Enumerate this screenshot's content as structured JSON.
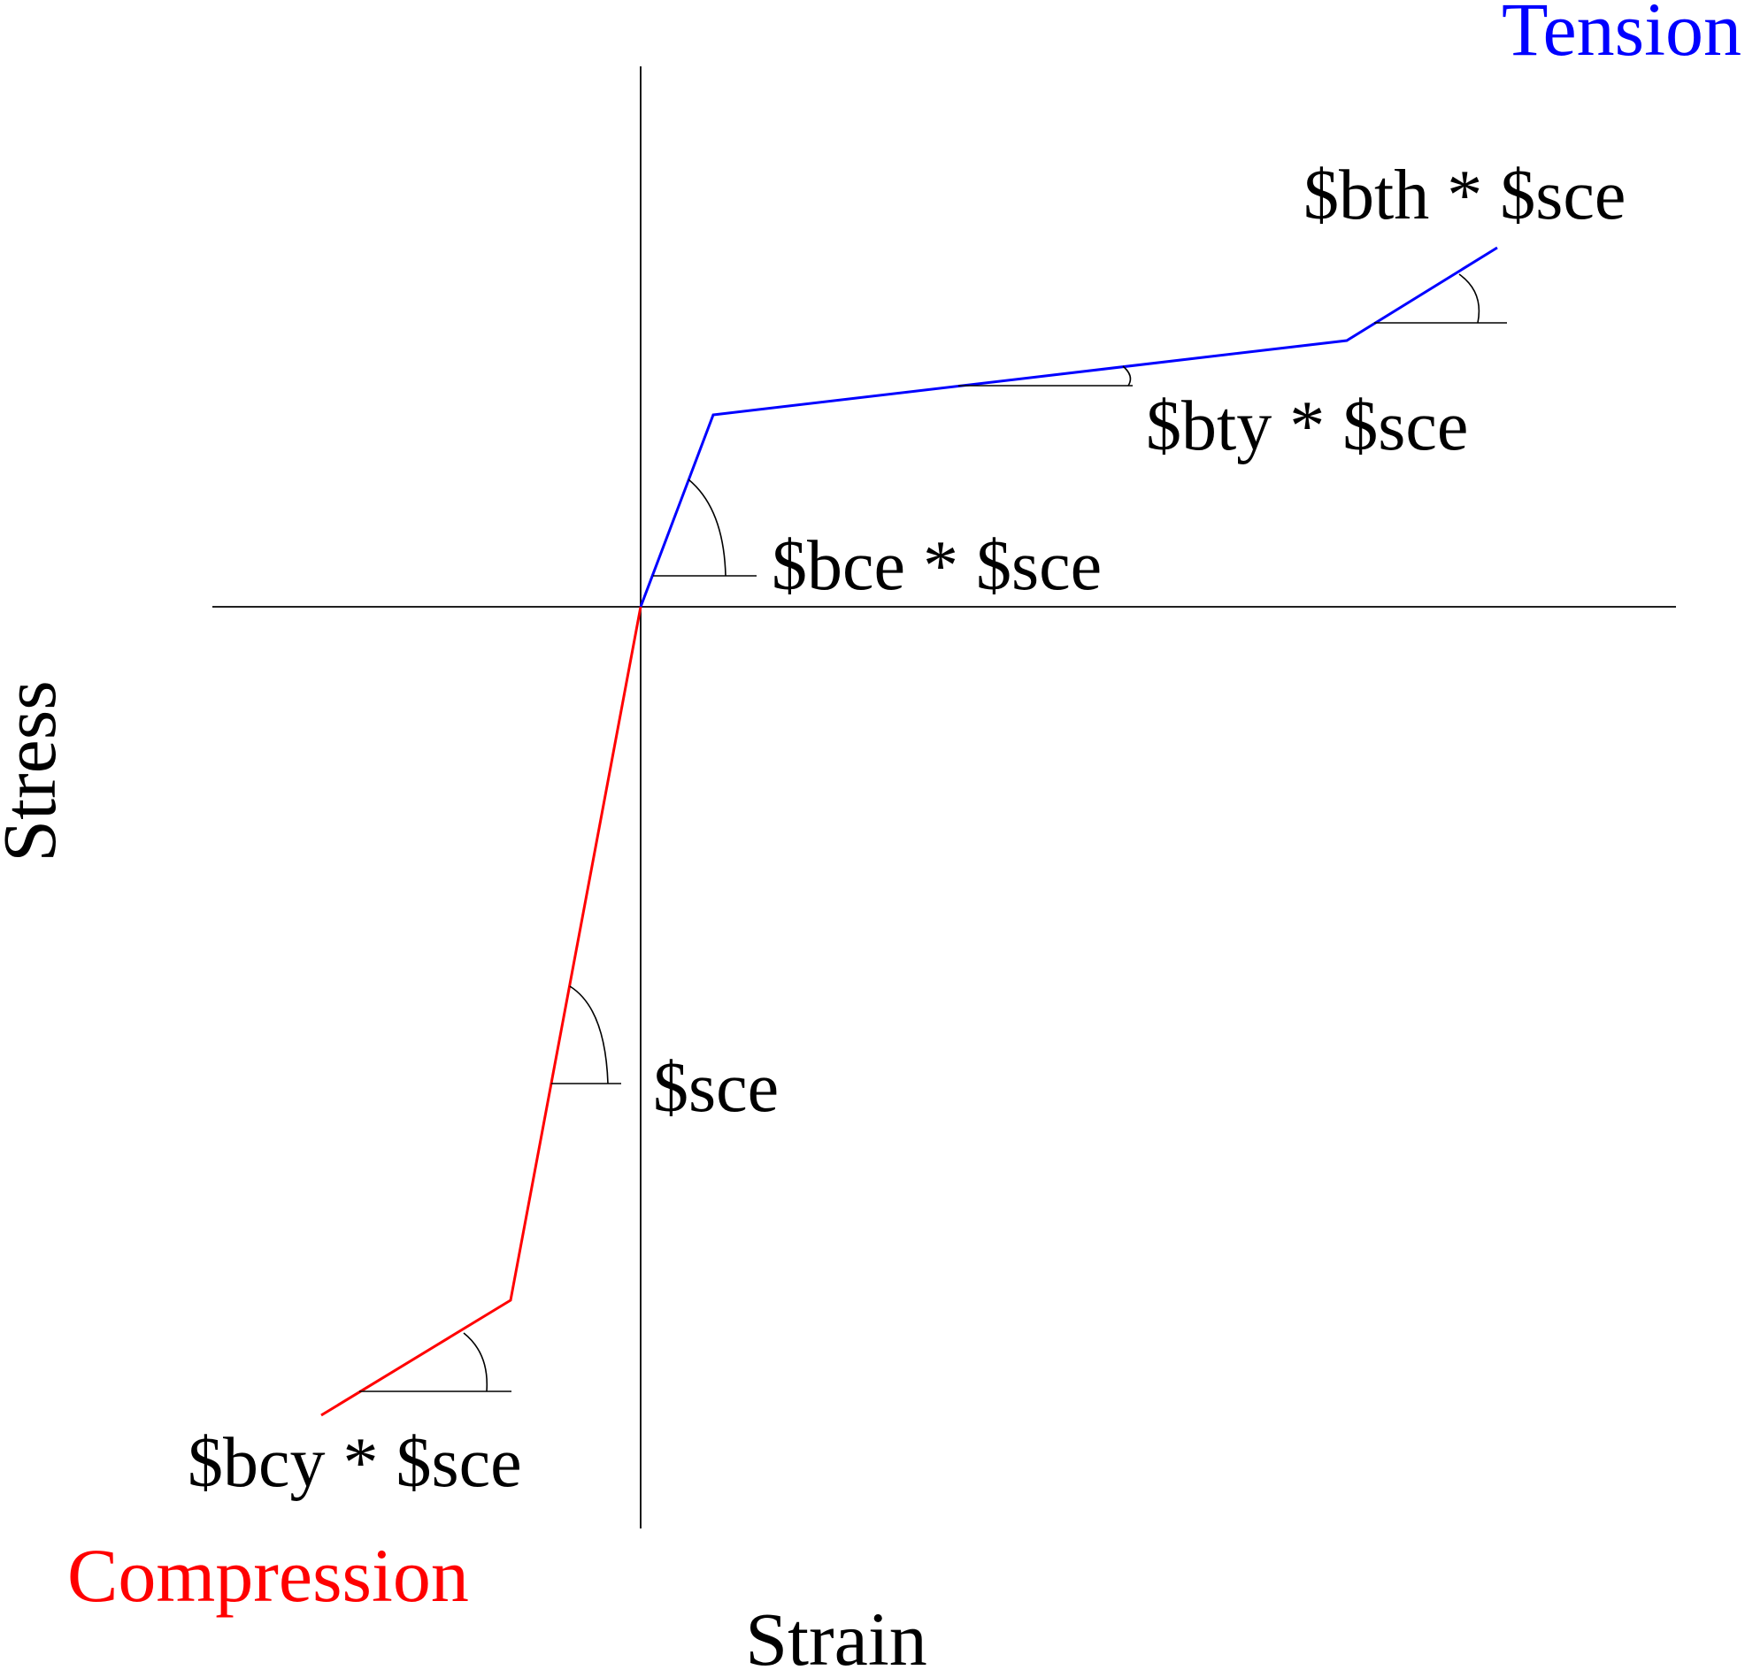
{
  "diagram": {
    "axes": {
      "x_label": "Strain",
      "y_label": "Stress"
    },
    "regions": {
      "tension": "Tension",
      "compression": "Compression"
    },
    "slopes": {
      "tension_hardening": "$bth * $sce",
      "tension_yield": "$bty * $sce",
      "tension_elastic": "$bce * $sce",
      "compression_elastic": "$sce",
      "compression_yield": "$bcy * $sce"
    },
    "colors": {
      "tension": "#0000ff",
      "compression": "#ff0000",
      "axis": "#000000",
      "text": "#000000"
    }
  }
}
